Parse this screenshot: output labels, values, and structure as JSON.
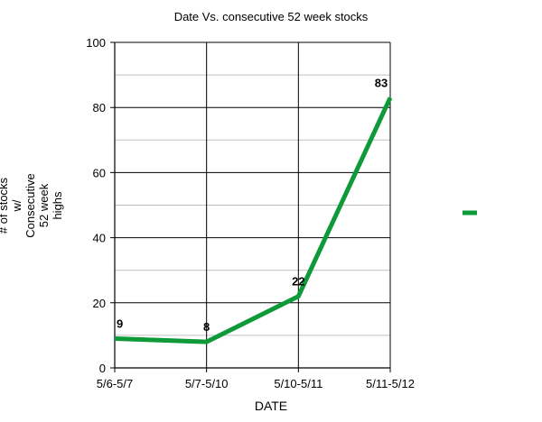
{
  "chart_data": {
    "type": "line",
    "title": "Date Vs. consecutive 52 week stocks",
    "xlabel": "DATE",
    "ylabel_lines": [
      "# of stocks",
      "w/",
      "Consecutive",
      "52 week",
      "highs"
    ],
    "categories": [
      "5/6-5/7",
      "5/7-5/10",
      "5/10-5/11",
      "5/11-5/12"
    ],
    "series": [
      {
        "values": [
          9,
          8,
          22,
          83
        ],
        "color": "#0f9a3a"
      }
    ],
    "data_labels": [
      "9",
      "8",
      "22",
      "83"
    ],
    "ylim": [
      0,
      100
    ],
    "yticks": [
      0,
      20,
      40,
      60,
      80,
      100
    ],
    "ytick_labels": [
      "0",
      "20",
      "40",
      "60",
      "80",
      "100"
    ],
    "minor_gridlines": [
      10,
      30,
      50,
      70,
      90
    ],
    "grid": true,
    "legend": {
      "placement": "right",
      "entries": [
        ""
      ]
    }
  }
}
